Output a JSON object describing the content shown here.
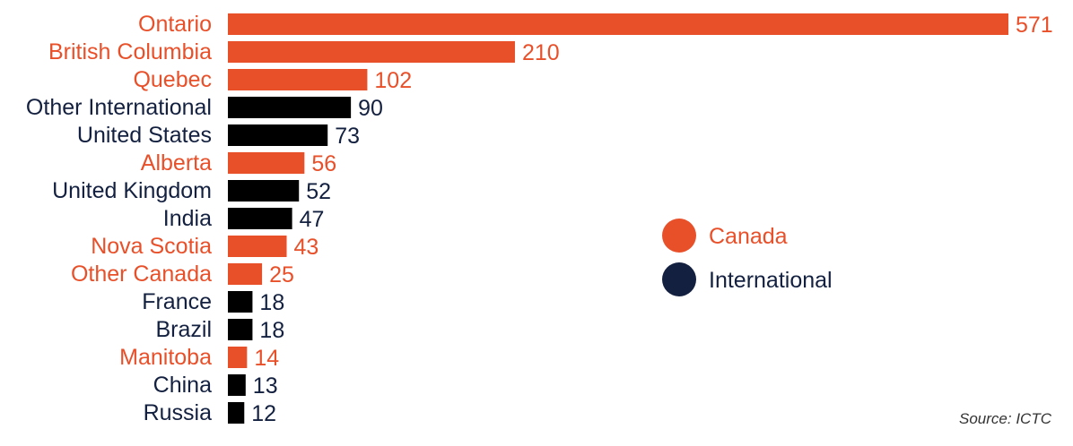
{
  "colors": {
    "Canada": "#e8502a",
    "International": "#000000",
    "label_international": "#13203f",
    "value_international": "#13203f"
  },
  "legend": {
    "items": [
      {
        "name": "Canada",
        "color": "#e8502a"
      },
      {
        "name": "International",
        "color": "#13203f"
      }
    ]
  },
  "source": "Source: ICTC",
  "chart_data": {
    "type": "bar",
    "orientation": "horizontal",
    "categories": [
      "Ontario",
      "British Columbia",
      "Quebec",
      "Other International",
      "United States",
      "Alberta",
      "United Kingdom",
      "India",
      "Nova Scotia",
      "Other Canada",
      "France",
      "Brazil",
      "Manitoba",
      "China",
      "Russia"
    ],
    "values": [
      571,
      210,
      102,
      90,
      73,
      56,
      52,
      47,
      43,
      25,
      18,
      18,
      14,
      13,
      12
    ],
    "groups": [
      "Canada",
      "Canada",
      "Canada",
      "International",
      "International",
      "Canada",
      "International",
      "International",
      "Canada",
      "Canada",
      "International",
      "International",
      "Canada",
      "International",
      "International"
    ],
    "xlim": [
      0,
      571
    ],
    "grid": false,
    "legend_placement": "right"
  }
}
